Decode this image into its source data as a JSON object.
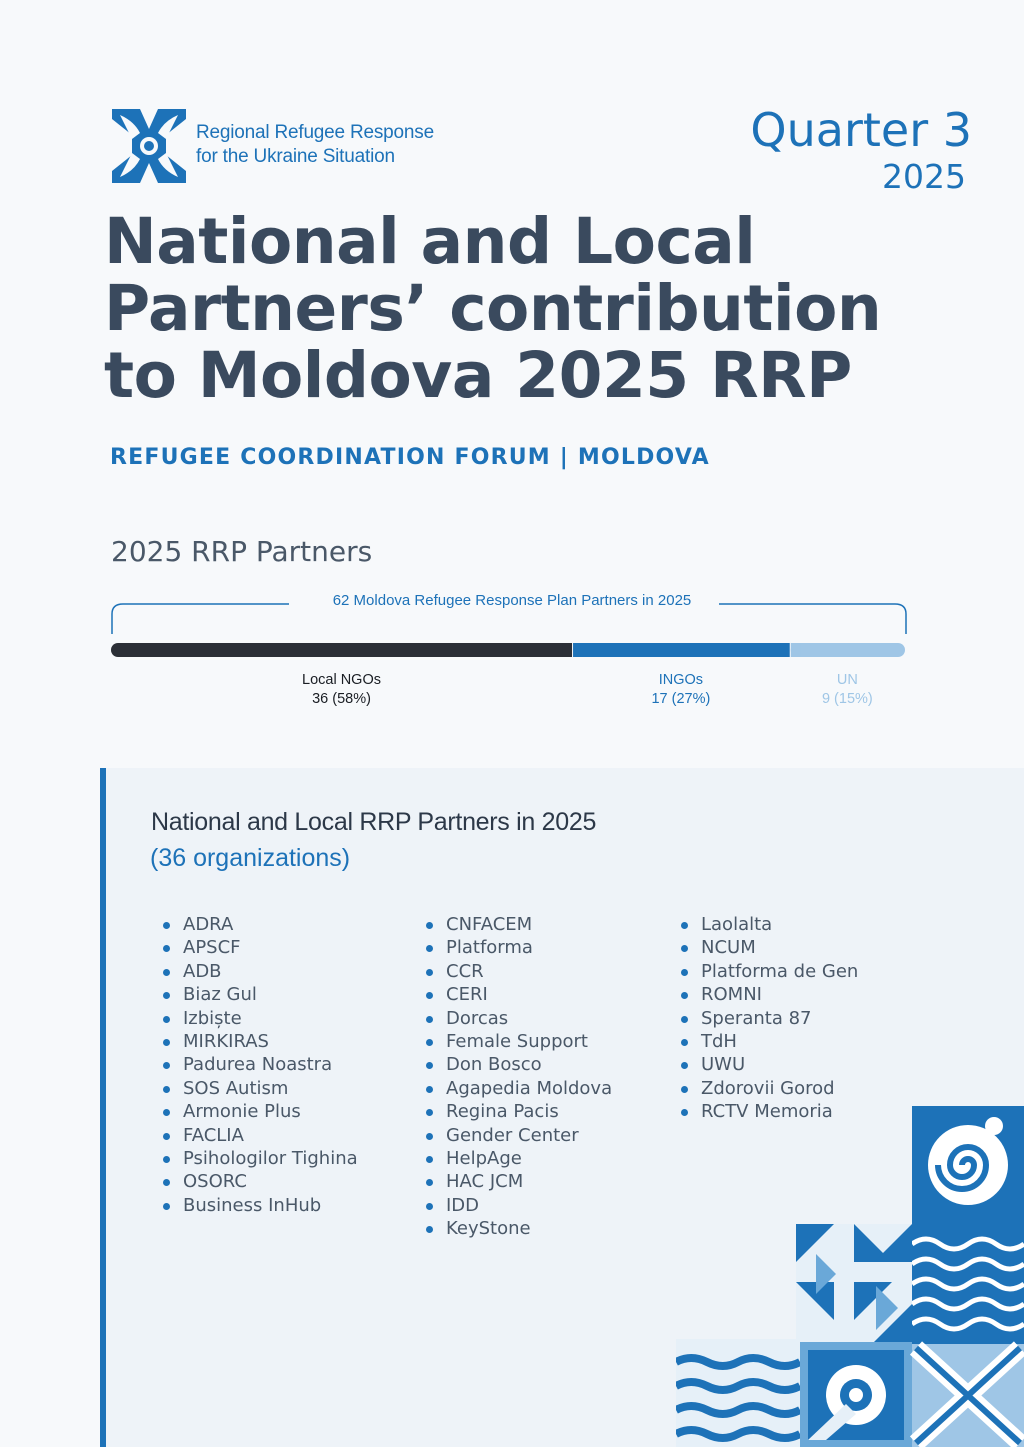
{
  "header": {
    "logo_line1": "Regional Refugee Response",
    "logo_line2": "for the Ukraine Situation",
    "quarter": "Quarter 3",
    "year": "2025"
  },
  "title": {
    "line1": "National and Local",
    "line2": "Partners’ contribution",
    "line3": "to Moldova 2025 RRP"
  },
  "subtitle": "REFUGEE COORDINATION FORUM | MOLDOVA",
  "partners": {
    "heading": "2025 RRP Partners",
    "bracket_label": "62 Moldova Refugee Response Plan Partners in 2025",
    "segments": [
      {
        "name": "Local NGOs",
        "value": 36,
        "label": "36 (58%)",
        "color": "#2b2f36"
      },
      {
        "name": "INGOs",
        "value": 17,
        "label": "17 (27%)",
        "color": "#1d72b8"
      },
      {
        "name": "UN",
        "value": 9,
        "label": "9 (15%)",
        "color": "#9fc6e6"
      }
    ]
  },
  "panel": {
    "title": "National and Local RRP Partners in 2025",
    "count": "(36 organizations)",
    "columns": [
      [
        "ADRA",
        "APSCF",
        "ADB",
        "Biaz Gul",
        "Izbiște",
        "MIRKIRAS",
        "Padurea Noastra",
        "SOS Autism",
        "Armonie Plus",
        "FACLIA",
        "Psihologilor Tighina",
        "OSORC",
        "Business InHub"
      ],
      [
        "CNFACEM",
        "Platforma",
        "CCR",
        "CERI",
        "Dorcas",
        "Female Support",
        "Don Bosco",
        "Agapedia Moldova",
        "Regina Pacis",
        "Gender Center",
        "HelpAge",
        "HAC JCM",
        "IDD",
        "KeyStone"
      ],
      [
        "Laolalta",
        "NCUM",
        "Platforma de Gen",
        "ROMNI",
        "Speranta 87",
        "TdH",
        "UWU",
        "Zdorovii Gorod",
        "RCTV Memoria"
      ]
    ]
  },
  "colors": {
    "brand_blue": "#1d72b8",
    "title_dark": "#3a4a5e",
    "local_ngo": "#2b2f36",
    "un_light": "#9fc6e6"
  }
}
